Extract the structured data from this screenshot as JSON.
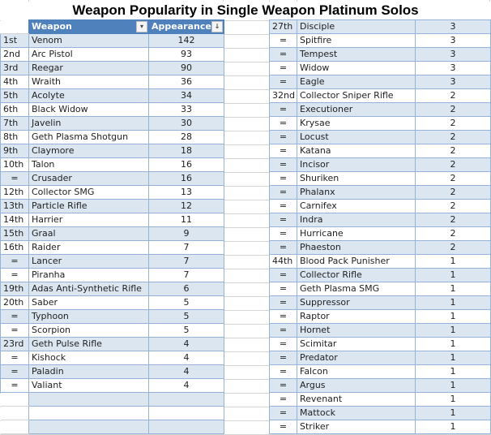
{
  "title": "Weapon Popularity in Single Weapon Platinum Solos",
  "table": {
    "headers": {
      "weapon": "Weapon",
      "appearances": "Appearances",
      "weapon_filter_icon": "▾",
      "appearances_sort_icon": "↓"
    },
    "left_rows": [
      {
        "rank": "1st",
        "weapon": "Venom",
        "appearances": "142"
      },
      {
        "rank": "2nd",
        "weapon": "Arc Pistol",
        "appearances": "93"
      },
      {
        "rank": "3rd",
        "weapon": "Reegar",
        "appearances": "90"
      },
      {
        "rank": "4th",
        "weapon": "Wraith",
        "appearances": "36"
      },
      {
        "rank": "5th",
        "weapon": "Acolyte",
        "appearances": "34"
      },
      {
        "rank": "6th",
        "weapon": "Black Widow",
        "appearances": "33"
      },
      {
        "rank": "7th",
        "weapon": "Javelin",
        "appearances": "30"
      },
      {
        "rank": "8th",
        "weapon": "Geth Plasma Shotgun",
        "appearances": "28"
      },
      {
        "rank": "9th",
        "weapon": "Claymore",
        "appearances": "18"
      },
      {
        "rank": "10th",
        "weapon": "Talon",
        "appearances": "16"
      },
      {
        "rank": "=",
        "weapon": "Crusader",
        "appearances": "16"
      },
      {
        "rank": "12th",
        "weapon": "Collector SMG",
        "appearances": "13"
      },
      {
        "rank": "13th",
        "weapon": "Particle Rifle",
        "appearances": "12"
      },
      {
        "rank": "14th",
        "weapon": "Harrier",
        "appearances": "11"
      },
      {
        "rank": "15th",
        "weapon": "Graal",
        "appearances": "9"
      },
      {
        "rank": "16th",
        "weapon": "Raider",
        "appearances": "7"
      },
      {
        "rank": "=",
        "weapon": "Lancer",
        "appearances": "7"
      },
      {
        "rank": "=",
        "weapon": "Piranha",
        "appearances": "7"
      },
      {
        "rank": "19th",
        "weapon": "Adas Anti-Synthetic Rifle",
        "appearances": "6"
      },
      {
        "rank": "20th",
        "weapon": "Saber",
        "appearances": "5"
      },
      {
        "rank": "=",
        "weapon": "Typhoon",
        "appearances": "5"
      },
      {
        "rank": "=",
        "weapon": "Scorpion",
        "appearances": "5"
      },
      {
        "rank": "23rd",
        "weapon": "Geth Pulse Rifle",
        "appearances": "4"
      },
      {
        "rank": "=",
        "weapon": "Kishock",
        "appearances": "4"
      },
      {
        "rank": "=",
        "weapon": "Paladin",
        "appearances": "4"
      },
      {
        "rank": "=",
        "weapon": "Valiant",
        "appearances": "4"
      },
      {
        "rank": "",
        "weapon": "",
        "appearances": ""
      },
      {
        "rank": "",
        "weapon": "",
        "appearances": ""
      },
      {
        "rank": "",
        "weapon": "",
        "appearances": ""
      }
    ],
    "right_rows": [
      {
        "rank": "27th",
        "weapon": "Disciple",
        "appearances": "3"
      },
      {
        "rank": "=",
        "weapon": "Spitfire",
        "appearances": "3"
      },
      {
        "rank": "=",
        "weapon": "Tempest",
        "appearances": "3"
      },
      {
        "rank": "=",
        "weapon": "Widow",
        "appearances": "3"
      },
      {
        "rank": "=",
        "weapon": "Eagle",
        "appearances": "3"
      },
      {
        "rank": "32nd",
        "weapon": "Collector Sniper Rifle",
        "appearances": "2"
      },
      {
        "rank": "=",
        "weapon": "Executioner",
        "appearances": "2"
      },
      {
        "rank": "=",
        "weapon": "Krysae",
        "appearances": "2"
      },
      {
        "rank": "=",
        "weapon": "Locust",
        "appearances": "2"
      },
      {
        "rank": "=",
        "weapon": "Katana",
        "appearances": "2"
      },
      {
        "rank": "=",
        "weapon": "Incisor",
        "appearances": "2"
      },
      {
        "rank": "=",
        "weapon": "Shuriken",
        "appearances": "2"
      },
      {
        "rank": "=",
        "weapon": "Phalanx",
        "appearances": "2"
      },
      {
        "rank": "=",
        "weapon": "Carnifex",
        "appearances": "2"
      },
      {
        "rank": "=",
        "weapon": "Indra",
        "appearances": "2"
      },
      {
        "rank": "=",
        "weapon": "Hurricane",
        "appearances": "2"
      },
      {
        "rank": "=",
        "weapon": "Phaeston",
        "appearances": "2"
      },
      {
        "rank": "44th",
        "weapon": "Blood Pack Punisher",
        "appearances": "1"
      },
      {
        "rank": "=",
        "weapon": "Collector Rifle",
        "appearances": "1"
      },
      {
        "rank": "=",
        "weapon": "Geth Plasma SMG",
        "appearances": "1"
      },
      {
        "rank": "=",
        "weapon": "Suppressor",
        "appearances": "1"
      },
      {
        "rank": "=",
        "weapon": "Raptor",
        "appearances": "1"
      },
      {
        "rank": "=",
        "weapon": "Hornet",
        "appearances": "1"
      },
      {
        "rank": "=",
        "weapon": "Scimitar",
        "appearances": "1"
      },
      {
        "rank": "=",
        "weapon": "Predator",
        "appearances": "1"
      },
      {
        "rank": "=",
        "weapon": "Falcon",
        "appearances": "1"
      },
      {
        "rank": "=",
        "weapon": "Argus",
        "appearances": "1"
      },
      {
        "rank": "=",
        "weapon": "Revenant",
        "appearances": "1"
      },
      {
        "rank": "=",
        "weapon": "Mattock",
        "appearances": "1"
      },
      {
        "rank": "=",
        "weapon": "Striker",
        "appearances": "1"
      }
    ]
  },
  "colors": {
    "header_bg": "#4f81bd",
    "band_bg": "#dce6f1",
    "border": "#95b3d7",
    "gridline": "#d4d4d4"
  }
}
